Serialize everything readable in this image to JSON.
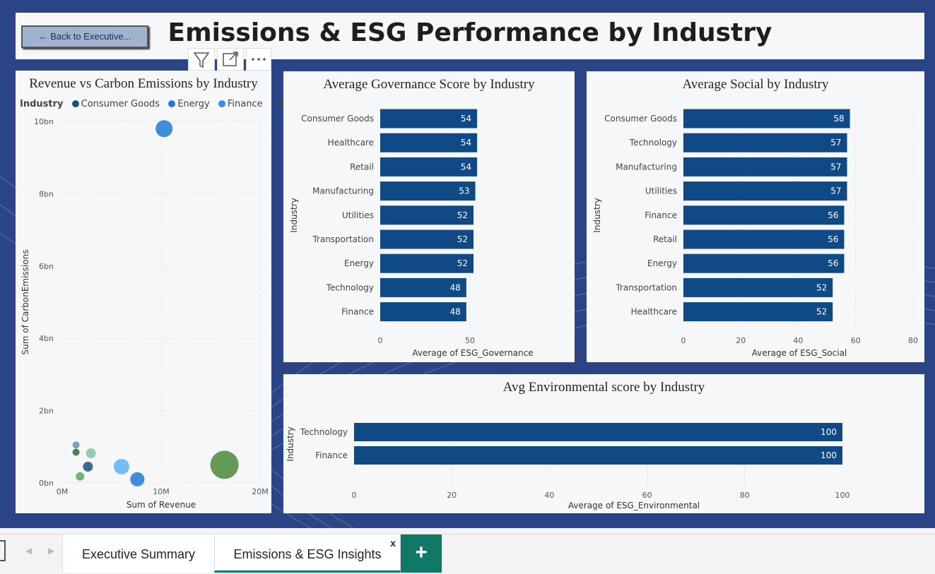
{
  "page": {
    "title": "Emissions & ESG Performance by Industry",
    "back_button": "← Back to Executive..."
  },
  "colors": {
    "bar": "#0f4a86",
    "accent": "#117865"
  },
  "scatter": {
    "title": "Revenue vs Carbon Emissions by Industry",
    "legend_title": "Industry",
    "legend": [
      {
        "name": "Consumer Goods",
        "color": "#1b4f84"
      },
      {
        "name": "Energy",
        "color": "#1e7ad6"
      },
      {
        "name": "Finance",
        "color": "#2f8ff0"
      }
    ],
    "y_ticks": [
      "10bn",
      "8bn",
      "6bn",
      "4bn",
      "2bn",
      "0bn"
    ],
    "x_ticks": [
      "0M",
      "10M",
      "20M"
    ],
    "xlabel": "Sum of Revenue",
    "ylabel": "Sum of CarbonEmissions"
  },
  "chart_data": [
    {
      "type": "scatter",
      "title": "Revenue vs Carbon Emissions by Industry",
      "xlabel": "Sum of Revenue",
      "ylabel": "Sum of CarbonEmissions",
      "xlim": [
        0,
        20
      ],
      "ylim": [
        0,
        10
      ],
      "x_unit": "M",
      "y_unit": "bn",
      "points": [
        {
          "x": 10.3,
          "y": 9.8,
          "r": 12,
          "color": "#1e7ad6"
        },
        {
          "x": 16.4,
          "y": 0.5,
          "r": 20,
          "color": "#4a8a3a"
        },
        {
          "x": 6.0,
          "y": 0.45,
          "r": 11,
          "color": "#5fb3f2"
        },
        {
          "x": 7.6,
          "y": 0.1,
          "r": 10,
          "color": "#1e7ad6"
        },
        {
          "x": 2.6,
          "y": 0.45,
          "r": 7,
          "color": "#1b4f84"
        },
        {
          "x": 2.9,
          "y": 0.82,
          "r": 7,
          "color": "#7cc6a4"
        },
        {
          "x": 1.4,
          "y": 1.05,
          "r": 5,
          "color": "#6d8fb3"
        },
        {
          "x": 1.4,
          "y": 0.85,
          "r": 5,
          "color": "#2f6b33"
        },
        {
          "x": 1.8,
          "y": 0.18,
          "r": 6,
          "color": "#5aa85a"
        }
      ]
    },
    {
      "type": "bar",
      "title": "Average Governance Score by Industry",
      "ylabel": "Industry",
      "xlabel": "Average of ESG_Governance",
      "xlim": [
        0,
        65
      ],
      "x_ticks": [
        0,
        50
      ],
      "categories": [
        "Consumer Goods",
        "Healthcare",
        "Retail",
        "Manufacturing",
        "Utilities",
        "Transportation",
        "Energy",
        "Technology",
        "Finance"
      ],
      "values": [
        54,
        54,
        54,
        53,
        52,
        52,
        52,
        48,
        48
      ]
    },
    {
      "type": "bar",
      "title": "Average Social by Industry",
      "ylabel": "Industry",
      "xlabel": "Average of ESG_Social",
      "xlim": [
        0,
        80
      ],
      "x_ticks": [
        0,
        20,
        40,
        60,
        80
      ],
      "categories": [
        "Consumer Goods",
        "Technology",
        "Manufacturing",
        "Utilities",
        "Finance",
        "Retail",
        "Energy",
        "Transportation",
        "Healthcare"
      ],
      "values": [
        58,
        57,
        57,
        57,
        56,
        56,
        56,
        52,
        52
      ]
    },
    {
      "type": "bar",
      "title": "Avg Environmental score by Industry",
      "ylabel": "Industry",
      "xlabel": "Average of ESG_Environmental",
      "xlim": [
        0,
        100
      ],
      "x_ticks": [
        0,
        20,
        40,
        60,
        80,
        100
      ],
      "categories": [
        "Technology",
        "Finance"
      ],
      "values": [
        100,
        100
      ]
    }
  ],
  "tabs": [
    {
      "label": "Executive Summary"
    },
    {
      "label": "Emissions & ESG Insights"
    }
  ],
  "tab_close": "x",
  "add_tab": "+"
}
